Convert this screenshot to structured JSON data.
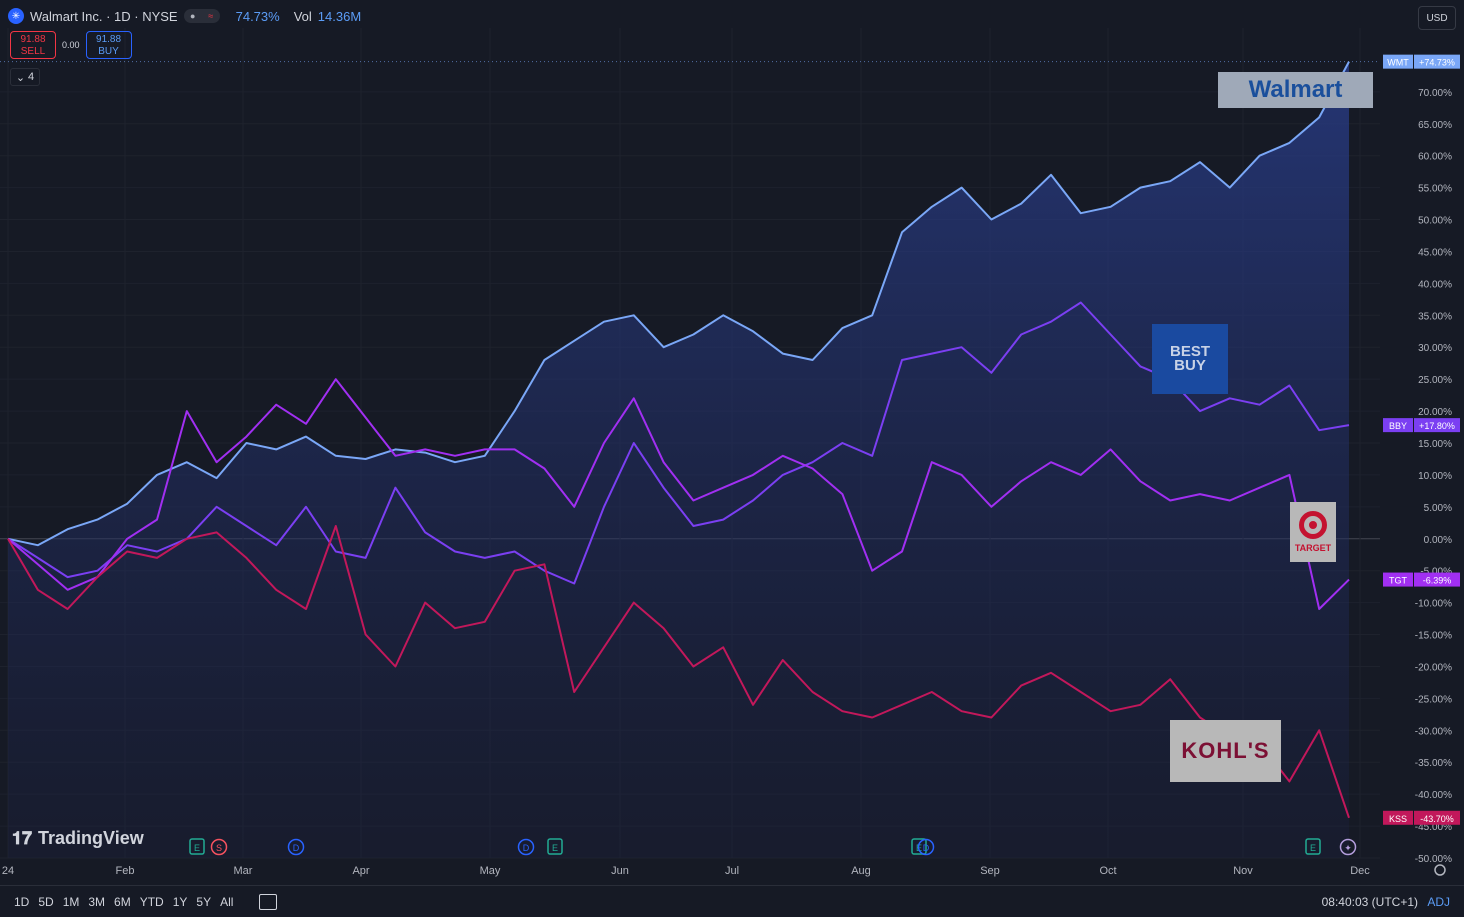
{
  "header": {
    "symbol_icon": "walmart-spark-icon",
    "title": "Walmart Inc. · 1D · NYSE",
    "change": "74.73%",
    "vol_label": "Vol",
    "vol_value": "14.36M",
    "pill_glyph": "≈",
    "sell_price": "91.88",
    "sell_label": "SELL",
    "spread": "0.00",
    "buy_price": "91.88",
    "buy_label": "BUY",
    "indicator_count": "4",
    "currency": "USD"
  },
  "footer": {
    "ranges": [
      "1D",
      "5D",
      "1M",
      "3M",
      "6M",
      "YTD",
      "1Y",
      "5Y",
      "All"
    ],
    "time": "08:40:03 (UTC+1)",
    "adj": "ADJ",
    "logo_text": "TradingView"
  },
  "brand_logos": {
    "walmart": "Walmart",
    "bestbuy_line1": "BEST",
    "bestbuy_line2": "BUY",
    "target": "TARGET",
    "kohls": "KOHL'S"
  },
  "colors": {
    "background": "#161a25",
    "grid": "#1e222d",
    "WMT": "#7aa7f7",
    "BBY": "#7b3ff2",
    "TGT": "#a12ff2",
    "KSS": "#c2185b",
    "axis_text": "#b2b5be"
  },
  "chart_data": {
    "type": "line",
    "title": "Walmart Inc. · 1D · NYSE",
    "ylabel": "",
    "y_unit": "%",
    "ylim": [
      -50,
      80
    ],
    "y_ticks": [
      -50,
      -45,
      -40,
      -35,
      -30,
      -25,
      -20,
      -15,
      -10,
      -5,
      0,
      5,
      10,
      15,
      20,
      25,
      30,
      35,
      40,
      45,
      50,
      55,
      60,
      65,
      70
    ],
    "x_ticks": [
      {
        "label": "24",
        "month": 0
      },
      {
        "label": "Feb",
        "month": 1
      },
      {
        "label": "Mar",
        "month": 2
      },
      {
        "label": "Apr",
        "month": 3
      },
      {
        "label": "May",
        "month": 4
      },
      {
        "label": "Jun",
        "month": 5
      },
      {
        "label": "Jul",
        "month": 6
      },
      {
        "label": "Aug",
        "month": 7
      },
      {
        "label": "Sep",
        "month": 8
      },
      {
        "label": "Oct",
        "month": 9
      },
      {
        "label": "Nov",
        "month": 10
      },
      {
        "label": "Dec",
        "month": 11
      }
    ],
    "grid": true,
    "series": [
      {
        "name": "WMT",
        "label": "+74.73%",
        "last": 74.73,
        "fill": true,
        "values": [
          0,
          -1,
          1.5,
          3,
          5.5,
          10,
          12,
          9.5,
          15,
          14,
          16,
          13,
          12.5,
          14,
          13.5,
          12,
          13,
          20,
          28,
          31,
          34,
          35,
          30,
          32,
          35,
          32.5,
          29,
          28,
          33,
          35,
          48,
          52,
          55,
          50,
          52.5,
          57,
          51,
          52,
          55,
          56,
          59,
          55,
          60,
          62,
          66,
          74.73
        ]
      },
      {
        "name": "BBY",
        "label": "+17.80%",
        "last": 17.8,
        "fill": false,
        "values": [
          0,
          -3,
          -6,
          -5,
          -1,
          -2,
          0,
          5,
          2,
          -1,
          5,
          -2,
          -3,
          8,
          1,
          -2,
          -3,
          -2,
          -5,
          -7,
          5,
          15,
          8,
          2,
          3,
          6,
          10,
          12,
          15,
          13,
          28,
          29,
          30,
          26,
          32,
          34,
          37,
          32,
          27,
          25,
          20,
          22,
          21,
          24,
          17,
          17.8
        ]
      },
      {
        "name": "TGT",
        "label": "-6.39%",
        "last": -6.39,
        "fill": false,
        "values": [
          0,
          -4,
          -8,
          -6,
          0,
          3,
          20,
          12,
          16,
          21,
          18,
          25,
          19,
          13,
          14,
          13,
          14,
          14,
          11,
          5,
          15,
          22,
          12,
          6,
          8,
          10,
          13,
          11,
          7,
          -5,
          -2,
          12,
          10,
          5,
          9,
          12,
          10,
          14,
          9,
          6,
          7,
          6,
          8,
          10,
          -11,
          -6.39
        ]
      },
      {
        "name": "KSS",
        "label": "-43.70%",
        "last": -43.7,
        "fill": false,
        "values": [
          0,
          -8,
          -11,
          -6,
          -2,
          -3,
          0,
          1,
          -3,
          -8,
          -11,
          2,
          -15,
          -20,
          -10,
          -14,
          -13,
          -5,
          -4,
          -24,
          -17,
          -10,
          -14,
          -20,
          -17,
          -26,
          -19,
          -24,
          -27,
          -28,
          -26,
          -24,
          -27,
          -28,
          -23,
          -21,
          -24,
          -27,
          -26,
          -22,
          -28,
          -31,
          -32,
          -38,
          -30,
          -43.7
        ]
      }
    ]
  }
}
